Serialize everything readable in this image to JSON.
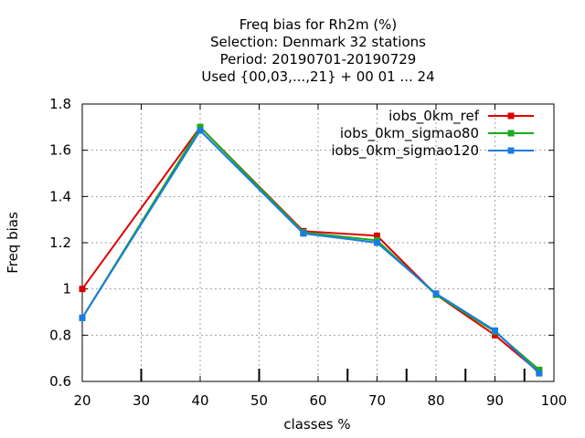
{
  "chart_data": {
    "type": "line",
    "title_lines": [
      "Freq bias  for Rh2m (%)",
      "Selection: Denmark     32 stations",
      "Period: 20190701-20190729",
      "Used {00,03,...,21} + 00 01 ... 24"
    ],
    "xlabel": "classes %",
    "ylabel": "Freq bias",
    "xlim": [
      20,
      100
    ],
    "ylim": [
      0.6,
      1.8
    ],
    "xticks": [
      20,
      30,
      40,
      50,
      60,
      70,
      80,
      90,
      100
    ],
    "xtick_labels": [
      "20",
      "30",
      "40",
      "50",
      "60",
      "70",
      "80",
      "90",
      "100"
    ],
    "yticks": [
      0.6,
      0.8,
      1.0,
      1.2,
      1.4,
      1.6,
      1.8
    ],
    "ytick_labels": [
      "0.6",
      "0.8",
      "1",
      "1.2",
      "1.4",
      "1.6",
      "1.8"
    ],
    "class_markers": [
      30,
      50,
      65,
      75,
      85,
      95
    ],
    "grid": true,
    "legend_position": "top-right",
    "series": [
      {
        "name": "iobs_0km_ref",
        "color": "#dd0000",
        "x": [
          20,
          40,
          57.5,
          70,
          80,
          90,
          97.5
        ],
        "y": [
          1.0,
          1.7,
          1.25,
          1.23,
          0.975,
          0.8,
          0.64
        ]
      },
      {
        "name": "iobs_0km_sigmao80",
        "color": "#1aaa1a",
        "x": [
          20,
          40,
          57.5,
          70,
          80,
          90,
          97.5
        ],
        "y": [
          0.875,
          1.7,
          1.245,
          1.21,
          0.975,
          0.815,
          0.65
        ]
      },
      {
        "name": "iobs_0km_sigmao120",
        "color": "#1a7be0",
        "x": [
          20,
          40,
          57.5,
          70,
          80,
          90,
          97.5
        ],
        "y": [
          0.875,
          1.685,
          1.24,
          1.2,
          0.98,
          0.82,
          0.635
        ]
      }
    ]
  }
}
